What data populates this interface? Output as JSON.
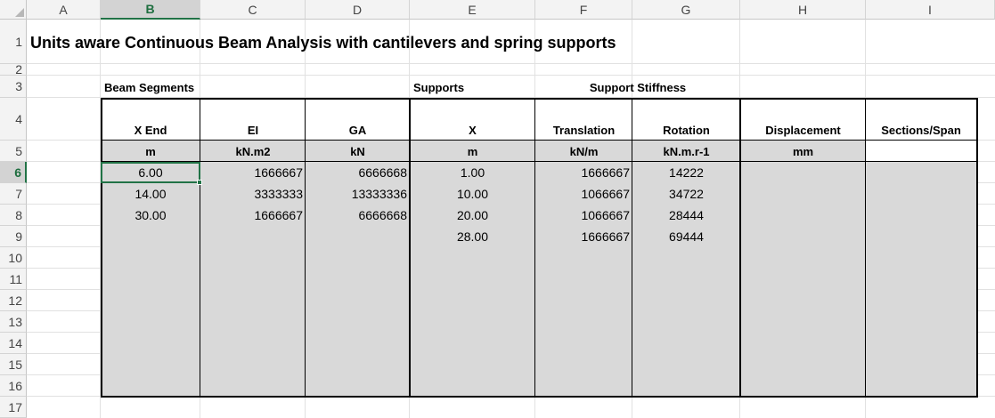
{
  "column_headers": [
    "A",
    "B",
    "C",
    "D",
    "E",
    "F",
    "G",
    "H",
    "I"
  ],
  "row_headers": [
    "1",
    "2",
    "3",
    "4",
    "5",
    "6",
    "7",
    "8",
    "9",
    "10",
    "11",
    "12",
    "13",
    "14",
    "15",
    "16",
    "17"
  ],
  "selected_cell": "B6",
  "title": "Units aware Continuous Beam Analysis with cantilevers and spring supports",
  "section_labels": {
    "beam_segments": "Beam Segments",
    "supports": "Supports",
    "support_stiffness": "Support Stiffness"
  },
  "table_headers": [
    "X End",
    "EI",
    "GA",
    "X",
    "Translation",
    "Rotation",
    "Displacement",
    "Sections/Span"
  ],
  "table_units": [
    "m",
    "kN.m2",
    "kN",
    "m",
    "kN/m",
    "kN.m.r-1",
    "mm",
    ""
  ],
  "beam_segments": [
    {
      "x_end": "6.00",
      "ei": "1666667",
      "ga": "6666668"
    },
    {
      "x_end": "14.00",
      "ei": "3333333",
      "ga": "13333336"
    },
    {
      "x_end": "30.00",
      "ei": "1666667",
      "ga": "6666668"
    }
  ],
  "supports": [
    {
      "x": "1.00",
      "translation": "1666667",
      "rotation": "14222"
    },
    {
      "x": "10.00",
      "translation": "1066667",
      "rotation": "34722"
    },
    {
      "x": "20.00",
      "translation": "1066667",
      "rotation": "28444"
    },
    {
      "x": "28.00",
      "translation": "1666667",
      "rotation": "69444"
    }
  ],
  "colors": {
    "accent": "#217346",
    "input_fill": "#d9d9d9",
    "header_bg": "#f3f3f3"
  }
}
